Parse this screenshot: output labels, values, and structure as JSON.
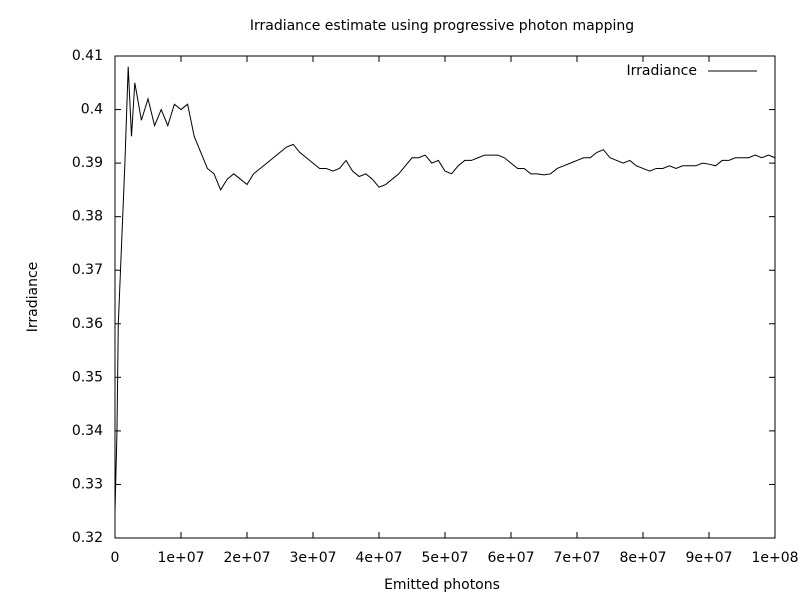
{
  "chart_data": {
    "type": "line",
    "title": "Irradiance estimate using progressive photon mapping",
    "x_label": "Emitted photons",
    "y_label": "Irradiance",
    "xlim": [
      0,
      100000000.0
    ],
    "ylim": [
      0.32,
      0.41
    ],
    "xticks": [
      0,
      {
        "value": 10000000.0,
        "label": "1e+07"
      },
      {
        "value": 20000000.0,
        "label": "2e+07"
      },
      {
        "value": 30000000.0,
        "label": "3e+07"
      },
      {
        "value": 40000000.0,
        "label": "4e+07"
      },
      {
        "value": 50000000.0,
        "label": "5e+07"
      },
      {
        "value": 60000000.0,
        "label": "6e+07"
      },
      {
        "value": 70000000.0,
        "label": "7e+07"
      },
      {
        "value": 80000000.0,
        "label": "8e+07"
      },
      {
        "value": 90000000.0,
        "label": "9e+07"
      },
      {
        "value": 100000000.0,
        "label": "1e+08"
      }
    ],
    "yticks": [
      0.32,
      0.33,
      0.34,
      0.35,
      0.36,
      0.37,
      0.38,
      0.39,
      0.4,
      0.41
    ],
    "legend": "top right",
    "grid": false,
    "x": [
      0,
      300000.0,
      500000.0,
      1000000.0,
      1500000.0,
      2000000.0,
      2500000.0,
      3000000.0,
      4000000.0,
      5000000.0,
      6000000.0,
      7000000.0,
      8000000.0,
      9000000.0,
      10000000.0,
      11000000.0,
      12000000.0,
      13000000.0,
      14000000.0,
      15000000.0,
      16000000.0,
      17000000.0,
      18000000.0,
      19000000.0,
      20000000.0,
      21000000.0,
      22000000.0,
      23000000.0,
      24000000.0,
      25000000.0,
      26000000.0,
      27000000.0,
      28000000.0,
      29000000.0,
      30000000.0,
      31000000.0,
      32000000.0,
      33000000.0,
      34000000.0,
      35000000.0,
      36000000.0,
      37000000.0,
      38000000.0,
      39000000.0,
      40000000.0,
      41000000.0,
      42000000.0,
      43000000.0,
      44000000.0,
      45000000.0,
      46000000.0,
      47000000.0,
      48000000.0,
      49000000.0,
      50000000.0,
      51000000.0,
      52000000.0,
      53000000.0,
      54000000.0,
      55000000.0,
      56000000.0,
      57000000.0,
      58000000.0,
      59000000.0,
      60000000.0,
      61000000.0,
      62000000.0,
      63000000.0,
      64000000.0,
      65000000.0,
      66000000.0,
      67000000.0,
      68000000.0,
      69000000.0,
      70000000.0,
      71000000.0,
      72000000.0,
      73000000.0,
      74000000.0,
      75000000.0,
      76000000.0,
      77000000.0,
      78000000.0,
      79000000.0,
      80000000.0,
      81000000.0,
      82000000.0,
      83000000.0,
      84000000.0,
      85000000.0,
      86000000.0,
      87000000.0,
      88000000.0,
      89000000.0,
      90000000.0,
      91000000.0,
      92000000.0,
      93000000.0,
      94000000.0,
      95000000.0,
      96000000.0,
      97000000.0,
      98000000.0,
      99000000.0,
      100000000.0
    ],
    "series": [
      {
        "name": "Irradiance",
        "color": "#000000",
        "values": [
          0.325,
          0.34,
          0.36,
          0.375,
          0.39,
          0.408,
          0.395,
          0.405,
          0.398,
          0.402,
          0.397,
          0.4,
          0.397,
          0.401,
          0.4,
          0.401,
          0.395,
          0.392,
          0.389,
          0.388,
          0.385,
          0.387,
          0.388,
          0.387,
          0.386,
          0.388,
          0.389,
          0.39,
          0.391,
          0.392,
          0.393,
          0.3935,
          0.392,
          0.391,
          0.39,
          0.389,
          0.389,
          0.3885,
          0.389,
          0.3905,
          0.3885,
          0.3875,
          0.388,
          0.387,
          0.3855,
          0.386,
          0.387,
          0.388,
          0.3895,
          0.391,
          0.391,
          0.3915,
          0.39,
          0.3905,
          0.3885,
          0.388,
          0.3895,
          0.3905,
          0.3905,
          0.391,
          0.3915,
          0.3915,
          0.3915,
          0.391,
          0.39,
          0.389,
          0.389,
          0.388,
          0.388,
          0.3878,
          0.388,
          0.389,
          0.3895,
          0.39,
          0.3905,
          0.391,
          0.391,
          0.392,
          0.3925,
          0.391,
          0.3905,
          0.39,
          0.3905,
          0.3895,
          0.389,
          0.3885,
          0.389,
          0.389,
          0.3895,
          0.389,
          0.3895,
          0.3895,
          0.3895,
          0.39,
          0.3898,
          0.3895,
          0.3905,
          0.3905,
          0.391,
          0.391,
          0.391,
          0.3915,
          0.391,
          0.3915,
          0.391
        ]
      }
    ]
  }
}
